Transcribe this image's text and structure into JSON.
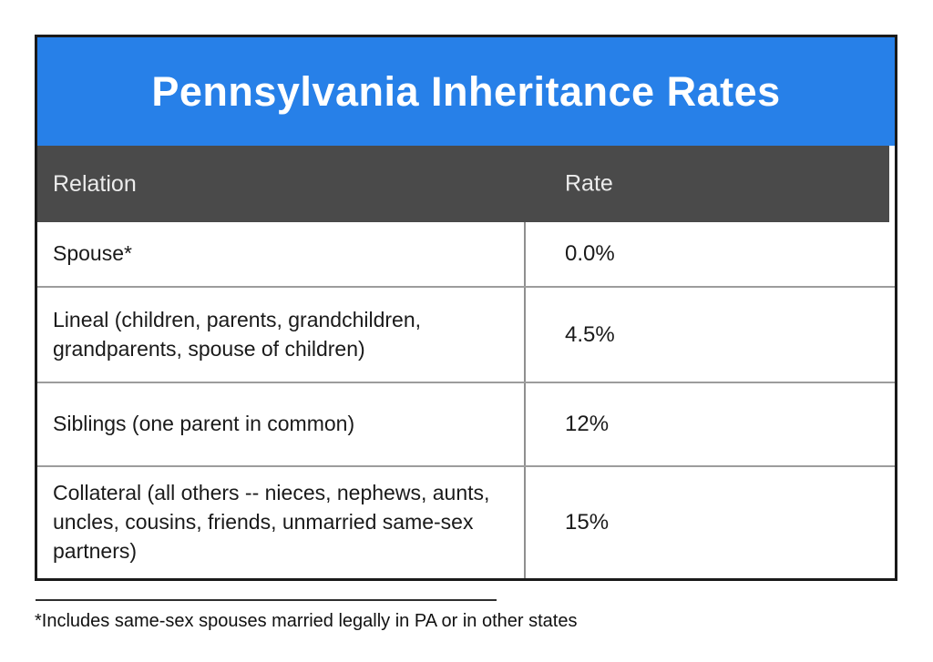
{
  "title": "Pennsylvania Inheritance Rates",
  "colors": {
    "banner_blue": "#2780e8",
    "header_gray": "#4a4a4a",
    "border_black": "#1a1a1a",
    "row_divider_gray": "#9c9c9c",
    "column_divider_gray": "#8f8f8f"
  },
  "table": {
    "columns": [
      "Relation",
      "Rate"
    ],
    "rows": [
      {
        "relation": "Spouse*",
        "rate": "0.0%"
      },
      {
        "relation": "Lineal (children, parents, grandchildren, grandparents, spouse of children)",
        "rate": "4.5%"
      },
      {
        "relation": "Siblings (one parent in common)",
        "rate": "12%"
      },
      {
        "relation": "Collateral (all others -- nieces, nephews, aunts, uncles, cousins, friends, unmarried same-sex partners)",
        "rate": "15%"
      }
    ]
  },
  "footnote": "*Includes same-sex spouses married legally in PA or in other states",
  "chart_data": {
    "type": "table",
    "title": "Pennsylvania Inheritance Rates",
    "columns": [
      "Relation",
      "Rate"
    ],
    "rows": [
      [
        "Spouse*",
        "0.0%"
      ],
      [
        "Lineal (children, parents, grandchildren, grandparents, spouse of children)",
        "4.5%"
      ],
      [
        "Siblings (one parent in common)",
        "12%"
      ],
      [
        "Collateral (all others -- nieces, nephews, aunts, uncles, cousins, friends, unmarried same-sex partners)",
        "15%"
      ]
    ],
    "rates_numeric_percent": [
      0.0,
      4.5,
      12,
      15
    ],
    "footnote": "*Includes same-sex spouses married legally in PA or in other states"
  }
}
